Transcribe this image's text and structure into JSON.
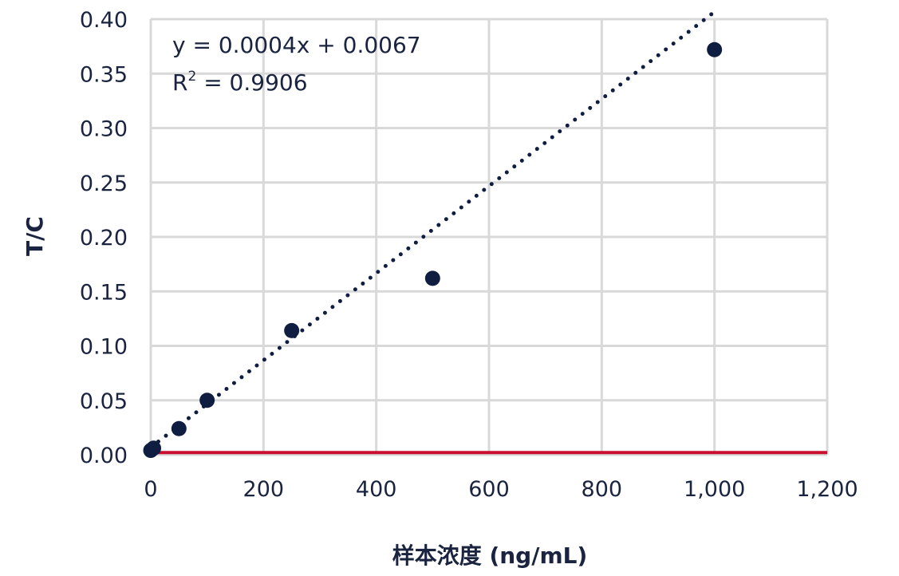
{
  "chart_data": {
    "type": "scatter",
    "xlabel": "样本浓度 (ng/mL)",
    "ylabel": "T/C",
    "xlim": [
      0,
      1200
    ],
    "ylim": [
      0,
      0.4
    ],
    "x_ticks": [
      "0",
      "200",
      "400",
      "600",
      "800",
      "1,000",
      "1,200"
    ],
    "x_tick_values": [
      0,
      200,
      400,
      600,
      800,
      1000,
      1200
    ],
    "y_ticks": [
      "0.00",
      "0.05",
      "0.10",
      "0.15",
      "0.20",
      "0.25",
      "0.30",
      "0.35",
      "0.40"
    ],
    "y_tick_values": [
      0,
      0.05,
      0.1,
      0.15,
      0.2,
      0.25,
      0.3,
      0.35,
      0.4
    ],
    "grid": true,
    "series": [
      {
        "points": [
          {
            "x": 0,
            "y": 0.004
          },
          {
            "x": 5,
            "y": 0.006
          },
          {
            "x": 50,
            "y": 0.024
          },
          {
            "x": 100,
            "y": 0.05
          },
          {
            "x": 250,
            "y": 0.114
          },
          {
            "x": 500,
            "y": 0.162
          },
          {
            "x": 1000,
            "y": 0.372
          }
        ],
        "color": "#0f1d40"
      }
    ],
    "trendline": {
      "style": "dotted",
      "slope": 0.0004,
      "intercept": 0.0067,
      "x_range": [
        0,
        1000
      ],
      "color": "#0f1d40"
    },
    "baseline": {
      "y": 0.002,
      "x_range": [
        0,
        1200
      ],
      "color": "#c8102e"
    },
    "annotations": {
      "equation": "y = 0.0004x + 0.0067",
      "r2_prefix": "R",
      "r2_sup": "2",
      "r2_value": " = 0.9906"
    }
  }
}
